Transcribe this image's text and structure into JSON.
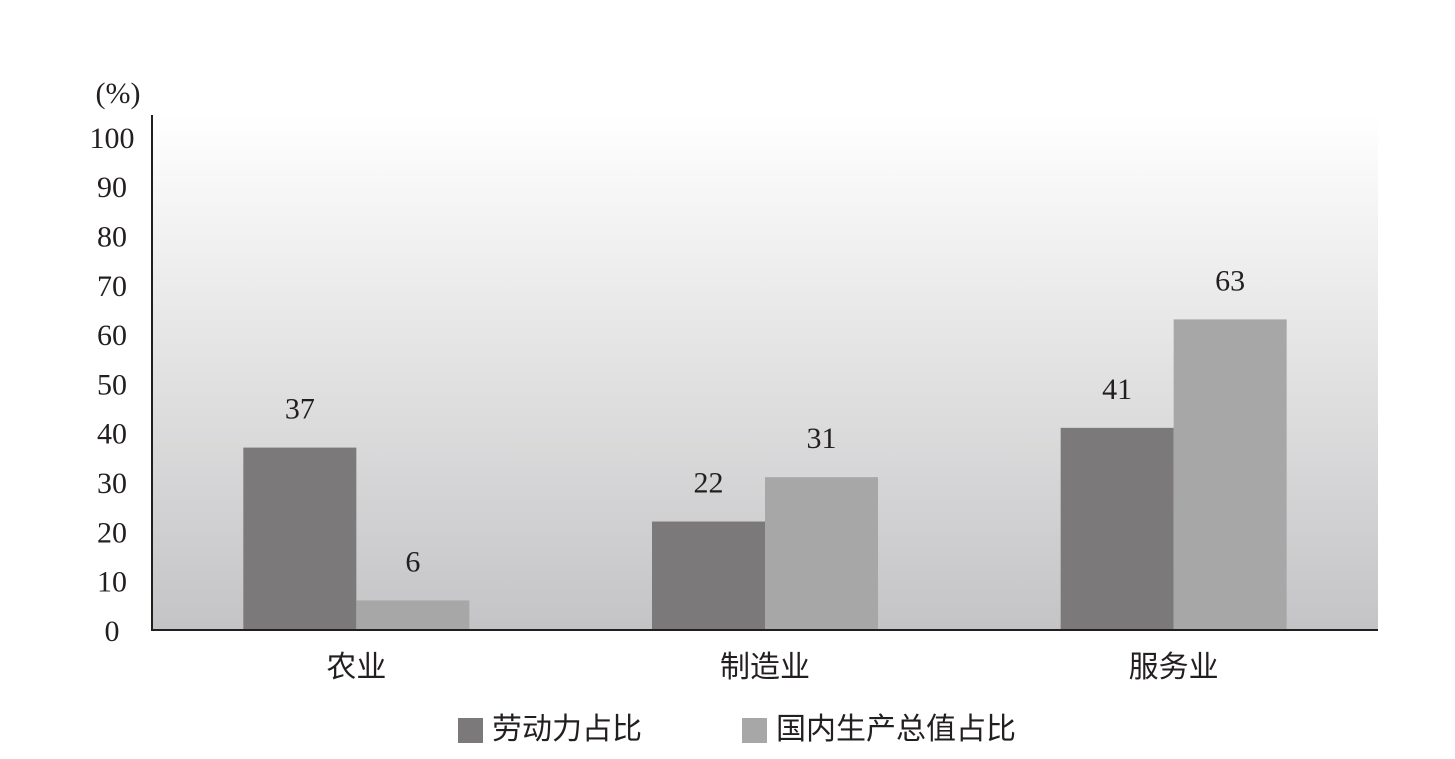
{
  "chart_data": {
    "type": "bar",
    "y_label": "(%)",
    "categories": [
      "农业",
      "制造业",
      "服务业"
    ],
    "series": [
      {
        "name": "劳动力占比",
        "color": "#7b797a",
        "values": [
          37,
          22,
          41
        ]
      },
      {
        "name": "国内生产总值占比",
        "color": "#a8a7a8",
        "values": [
          6,
          31,
          63
        ]
      }
    ],
    "ylim": [
      0,
      100
    ],
    "yticks": [
      0,
      10,
      20,
      30,
      40,
      50,
      60,
      70,
      80,
      90,
      100
    ],
    "grid": false
  }
}
